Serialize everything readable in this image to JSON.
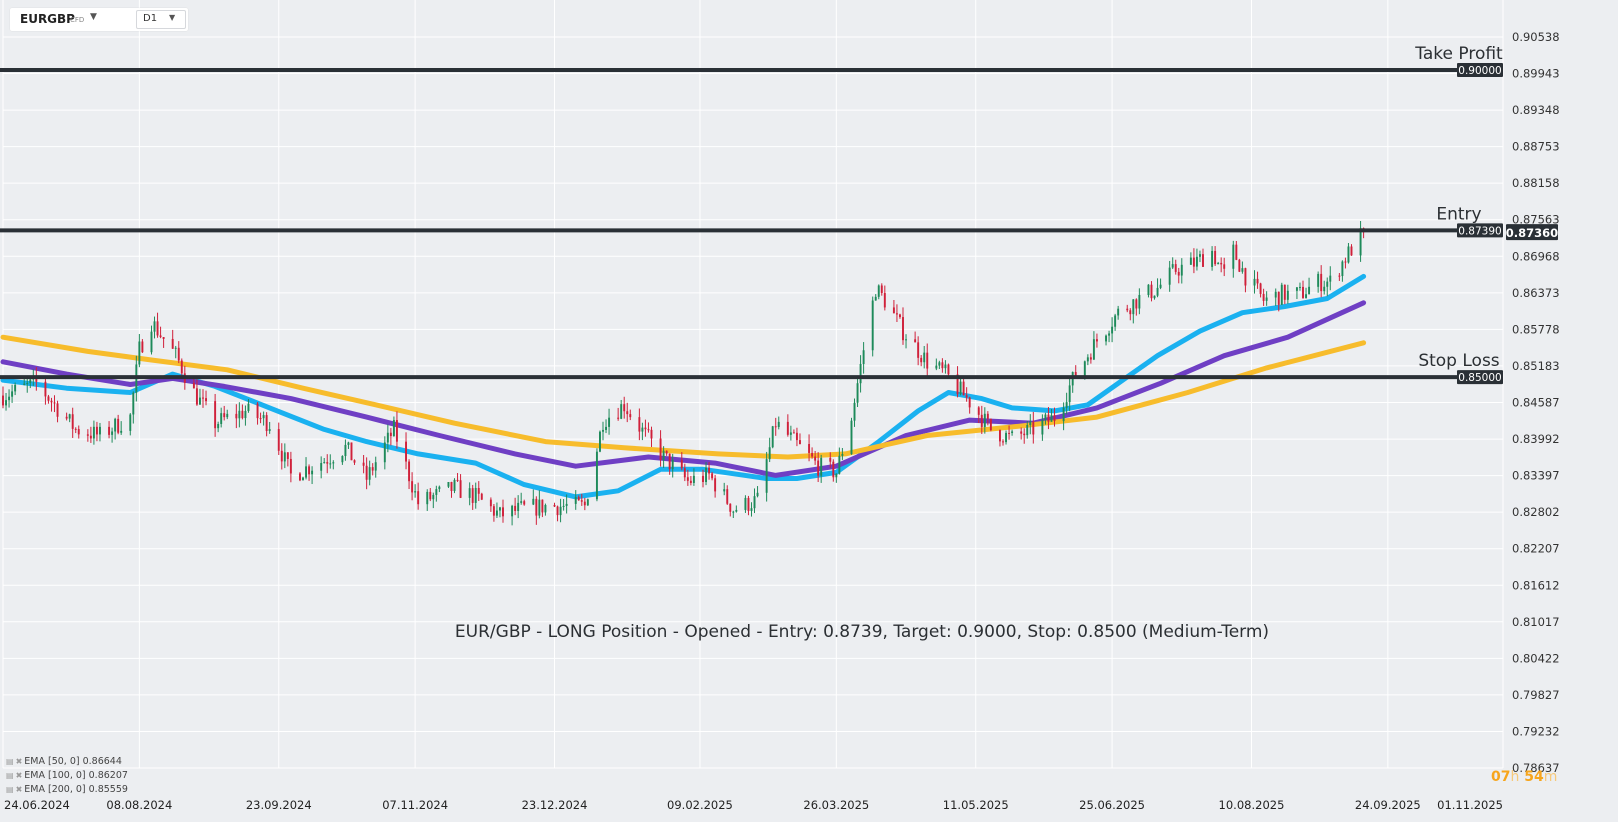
{
  "toolbar": {
    "symbol": "EURGBP",
    "symbol_type": "CFD",
    "timeframe": "D1",
    "symbol_caret_icon": "caret-down-icon",
    "timeframe_caret_icon": "caret-down-icon"
  },
  "annotation_text": "EUR/GBP - LONG Position - Opened - Entry: 0.8739, Target: 0.9000, Stop: 0.8500 (Medium-Term)",
  "timer": {
    "hours": "07",
    "h_unit": "h",
    "minutes": "54",
    "m_unit": "m"
  },
  "indicators": [
    {
      "label": "EMA  [50,  0]  0.86644",
      "color": "#1ab1f0"
    },
    {
      "label": "EMA  [100,  0]  0.86207",
      "color": "#6f3fc4"
    },
    {
      "label": "EMA  [200,  0]  0.85559",
      "color": "#f7bc2c"
    }
  ],
  "colors": {
    "background": "#eceef1",
    "grid": "#ffffff",
    "candle_up": "#1e8a5a",
    "candle_down": "#d0203a",
    "level_line": "#2a3036",
    "tag_bg": "#2a3036",
    "timer": "#f7a51c"
  },
  "chart_data": {
    "type": "candlestick",
    "symbol": "EURGBP",
    "timeframe": "D1",
    "y_range": [
      0.78637,
      0.9114
    ],
    "y_ticks": [
      "0.90538",
      "0.89943",
      "0.89348",
      "0.88753",
      "0.88158",
      "0.87563",
      "0.86968",
      "0.86373",
      "0.85778",
      "0.85183",
      "0.84587",
      "0.83992",
      "0.83397",
      "0.82802",
      "0.82207",
      "0.81612",
      "0.81017",
      "0.80422",
      "0.79827",
      "0.79232",
      "0.78637"
    ],
    "x_ticks": [
      "24.06.2024",
      "08.08.2024",
      "23.09.2024",
      "07.11.2024",
      "23.12.2024",
      "09.02.2025",
      "26.03.2025",
      "11.05.2025",
      "25.06.2025",
      "10.08.2025",
      "24.09.2025",
      "01.11.2025"
    ],
    "date_range": [
      "2024-06-24",
      "2025-11-01"
    ],
    "last_date": "2025-09-16",
    "current_price": "0.87360",
    "levels": [
      {
        "name": "Take Profit",
        "value": 0.9,
        "tag": "0.90000"
      },
      {
        "name": "Entry",
        "value": 0.8739,
        "tag": "0.87390"
      },
      {
        "name": "Stop Loss",
        "value": 0.85,
        "tag": "0.85000"
      }
    ],
    "close_path": [
      [
        "2024-06-24",
        0.847
      ],
      [
        "2024-07-05",
        0.849
      ],
      [
        "2024-07-18",
        0.8415
      ],
      [
        "2024-07-26",
        0.8405
      ],
      [
        "2024-08-05",
        0.8435
      ],
      [
        "2024-08-08",
        0.8545
      ],
      [
        "2024-08-12",
        0.859
      ],
      [
        "2024-08-20",
        0.8535
      ],
      [
        "2024-08-26",
        0.8475
      ],
      [
        "2024-09-02",
        0.8425
      ],
      [
        "2024-09-12",
        0.8445
      ],
      [
        "2024-09-20",
        0.8425
      ],
      [
        "2024-09-27",
        0.834
      ],
      [
        "2024-10-08",
        0.8365
      ],
      [
        "2024-10-15",
        0.8385
      ],
      [
        "2024-10-22",
        0.8335
      ],
      [
        "2024-10-31",
        0.8415
      ],
      [
        "2024-11-08",
        0.8295
      ],
      [
        "2024-11-20",
        0.832
      ],
      [
        "2024-11-27",
        0.8305
      ],
      [
        "2024-12-05",
        0.8275
      ],
      [
        "2024-12-12",
        0.8285
      ],
      [
        "2024-12-20",
        0.829
      ],
      [
        "2025-01-02",
        0.829
      ],
      [
        "2025-01-08",
        0.843
      ],
      [
        "2025-01-15",
        0.8455
      ],
      [
        "2025-01-22",
        0.8405
      ],
      [
        "2025-01-28",
        0.837
      ],
      [
        "2025-02-05",
        0.833
      ],
      [
        "2025-02-12",
        0.834
      ],
      [
        "2025-02-20",
        0.8285
      ],
      [
        "2025-02-28",
        0.83
      ],
      [
        "2025-03-06",
        0.8425
      ],
      [
        "2025-03-13",
        0.839
      ],
      [
        "2025-03-20",
        0.8355
      ],
      [
        "2025-03-26",
        0.8345
      ],
      [
        "2025-03-31",
        0.8435
      ],
      [
        "2025-04-04",
        0.8545
      ],
      [
        "2025-04-08",
        0.8645
      ],
      [
        "2025-04-11",
        0.8625
      ],
      [
        "2025-04-17",
        0.8575
      ],
      [
        "2025-04-25",
        0.8525
      ],
      [
        "2025-05-01",
        0.8505
      ],
      [
        "2025-05-09",
        0.846
      ],
      [
        "2025-05-16",
        0.8415
      ],
      [
        "2025-05-23",
        0.84
      ],
      [
        "2025-05-30",
        0.8415
      ],
      [
        "2025-06-06",
        0.8435
      ],
      [
        "2025-06-13",
        0.8505
      ],
      [
        "2025-06-20",
        0.856
      ],
      [
        "2025-06-27",
        0.8605
      ],
      [
        "2025-07-03",
        0.8625
      ],
      [
        "2025-07-10",
        0.8645
      ],
      [
        "2025-07-16",
        0.8675
      ],
      [
        "2025-07-22",
        0.8685
      ],
      [
        "2025-07-28",
        0.8705
      ],
      [
        "2025-08-01",
        0.8665
      ],
      [
        "2025-08-04",
        0.8705
      ],
      [
        "2025-08-08",
        0.8665
      ],
      [
        "2025-08-14",
        0.8625
      ],
      [
        "2025-08-20",
        0.8635
      ],
      [
        "2025-08-26",
        0.8635
      ],
      [
        "2025-09-01",
        0.8655
      ],
      [
        "2025-09-05",
        0.8655
      ],
      [
        "2025-09-10",
        0.8695
      ],
      [
        "2025-09-16",
        0.8736
      ]
    ],
    "emas": [
      {
        "name": "EMA 50",
        "color": "#1ab1f0",
        "points": [
          [
            "2024-06-24",
            0.8495
          ],
          [
            "2024-07-15",
            0.8482
          ],
          [
            "2024-08-05",
            0.8475
          ],
          [
            "2024-08-19",
            0.8505
          ],
          [
            "2024-09-02",
            0.8485
          ],
          [
            "2024-09-20",
            0.845
          ],
          [
            "2024-10-08",
            0.8415
          ],
          [
            "2024-10-22",
            0.8395
          ],
          [
            "2024-11-08",
            0.8375
          ],
          [
            "2024-11-27",
            0.836
          ],
          [
            "2024-12-13",
            0.8325
          ],
          [
            "2024-12-30",
            0.8305
          ],
          [
            "2025-01-13",
            0.8315
          ],
          [
            "2025-01-27",
            0.835
          ],
          [
            "2025-02-10",
            0.835
          ],
          [
            "2025-03-03",
            0.8335
          ],
          [
            "2025-03-13",
            0.8335
          ],
          [
            "2025-03-26",
            0.8345
          ],
          [
            "2025-04-09",
            0.8395
          ],
          [
            "2025-04-22",
            0.8445
          ],
          [
            "2025-05-02",
            0.8475
          ],
          [
            "2025-05-13",
            0.8465
          ],
          [
            "2025-05-23",
            0.845
          ],
          [
            "2025-06-06",
            0.8445
          ],
          [
            "2025-06-17",
            0.8455
          ],
          [
            "2025-06-27",
            0.849
          ],
          [
            "2025-07-10",
            0.8535
          ],
          [
            "2025-07-24",
            0.8575
          ],
          [
            "2025-08-07",
            0.8605
          ],
          [
            "2025-08-21",
            0.8615
          ],
          [
            "2025-09-04",
            0.8628
          ],
          [
            "2025-09-16",
            0.8664
          ]
        ]
      },
      {
        "name": "EMA 100",
        "color": "#6f3fc4",
        "points": [
          [
            "2024-06-24",
            0.8525
          ],
          [
            "2024-07-15",
            0.8505
          ],
          [
            "2024-08-05",
            0.8488
          ],
          [
            "2024-08-19",
            0.8498
          ],
          [
            "2024-09-05",
            0.8485
          ],
          [
            "2024-09-27",
            0.8465
          ],
          [
            "2024-10-22",
            0.8435
          ],
          [
            "2024-11-15",
            0.8405
          ],
          [
            "2024-12-10",
            0.8375
          ],
          [
            "2024-12-30",
            0.8355
          ],
          [
            "2025-01-23",
            0.837
          ],
          [
            "2025-02-14",
            0.836
          ],
          [
            "2025-03-06",
            0.834
          ],
          [
            "2025-03-26",
            0.8355
          ],
          [
            "2025-04-18",
            0.8405
          ],
          [
            "2025-05-09",
            0.843
          ],
          [
            "2025-05-30",
            0.8425
          ],
          [
            "2025-06-20",
            0.845
          ],
          [
            "2025-07-11",
            0.849
          ],
          [
            "2025-08-01",
            0.8535
          ],
          [
            "2025-08-22",
            0.8565
          ],
          [
            "2025-09-16",
            0.8621
          ]
        ]
      },
      {
        "name": "EMA 200",
        "color": "#f7bc2c",
        "points": [
          [
            "2024-06-24",
            0.8565
          ],
          [
            "2024-07-22",
            0.8542
          ],
          [
            "2024-08-12",
            0.8528
          ],
          [
            "2024-09-06",
            0.8512
          ],
          [
            "2024-10-01",
            0.8482
          ],
          [
            "2024-10-25",
            0.8455
          ],
          [
            "2024-11-20",
            0.8425
          ],
          [
            "2024-12-20",
            0.8395
          ],
          [
            "2025-01-15",
            0.8385
          ],
          [
            "2025-02-15",
            0.8375
          ],
          [
            "2025-03-10",
            0.837
          ],
          [
            "2025-03-29",
            0.8375
          ],
          [
            "2025-04-25",
            0.8405
          ],
          [
            "2025-05-25",
            0.842
          ],
          [
            "2025-06-20",
            0.8435
          ],
          [
            "2025-07-20",
            0.8475
          ],
          [
            "2025-08-15",
            0.8515
          ],
          [
            "2025-09-16",
            0.8556
          ]
        ]
      }
    ],
    "grid": true
  }
}
